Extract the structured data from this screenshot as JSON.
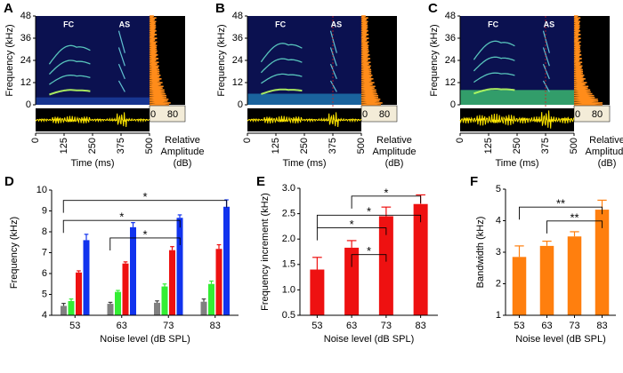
{
  "chart_data": [
    {
      "type": "spectrogram",
      "panel": "A",
      "ylabel": "Frequency (kHz)",
      "xlabel": "Time (ms)",
      "ylim": [
        0,
        48
      ],
      "yticks": [
        0,
        12,
        24,
        36,
        48
      ],
      "xlim": [
        0,
        500
      ],
      "xticks": [
        0,
        125,
        250,
        375,
        500
      ],
      "annotations": [
        "FC",
        "AS"
      ],
      "amplitude_lim": [
        0,
        80
      ],
      "amplitude_ticks": [
        0,
        80
      ],
      "amplitude_label": "Relative Amplitude (dB)"
    },
    {
      "type": "spectrogram",
      "panel": "B",
      "ylabel": "Frequency (kHz)",
      "xlabel": "Time (ms)",
      "ylim": [
        0,
        48
      ],
      "yticks": [
        0,
        12,
        24,
        36,
        48
      ],
      "xlim": [
        0,
        500
      ],
      "xticks": [
        0,
        125,
        250,
        375,
        500
      ],
      "annotations": [
        "FC",
        "AS"
      ],
      "amplitude_lim": [
        0,
        80
      ],
      "amplitude_ticks": [
        0,
        80
      ],
      "amplitude_label": "Relative Amplitude (dB)"
    },
    {
      "type": "spectrogram",
      "panel": "C",
      "ylabel": "Frequency (kHz)",
      "xlabel": "Time (ms)",
      "ylim": [
        0,
        48
      ],
      "yticks": [
        0,
        12,
        24,
        36,
        48
      ],
      "xlim": [
        0,
        500
      ],
      "xticks": [
        0,
        125,
        250,
        375,
        500
      ],
      "annotations": [
        "FC",
        "AS"
      ],
      "amplitude_lim": [
        0,
        80
      ],
      "amplitude_ticks": [
        0,
        80
      ],
      "amplitude_label": "Relative Amplitude (dB)"
    },
    {
      "type": "bar",
      "panel": "D",
      "ylabel": "Frequency (kHz)",
      "xlabel": "Noise level (dB SPL)",
      "categories": [
        "53",
        "63",
        "73",
        "83"
      ],
      "series": [
        {
          "color": "#808080",
          "values": [
            4.45,
            4.55,
            4.6,
            4.65
          ],
          "errors": [
            0.12,
            0.07,
            0.09,
            0.13
          ]
        },
        {
          "color": "#33ee33",
          "values": [
            4.68,
            5.12,
            5.38,
            5.5
          ],
          "errors": [
            0.1,
            0.07,
            0.12,
            0.14
          ]
        },
        {
          "color": "#ee1111",
          "values": [
            6.05,
            6.48,
            7.12,
            7.18
          ],
          "errors": [
            0.08,
            0.08,
            0.17,
            0.2
          ]
        },
        {
          "color": "#1133ee",
          "values": [
            7.6,
            8.22,
            8.67,
            9.2
          ],
          "errors": [
            0.28,
            0.22,
            0.14,
            0.33
          ]
        }
      ],
      "ylim": [
        4,
        10
      ],
      "yticks": [
        4,
        5,
        6,
        7,
        8,
        9,
        10
      ],
      "annotations": [
        "*",
        "*",
        "*"
      ]
    },
    {
      "type": "bar",
      "panel": "E",
      "ylabel": "Frequency increment (kHz)",
      "xlabel": "Noise level (dB SPL)",
      "categories": [
        "53",
        "63",
        "73",
        "83"
      ],
      "series": [
        {
          "color": "#ee1111",
          "values": [
            1.4,
            1.83,
            2.45,
            2.69
          ],
          "errors": [
            0.24,
            0.14,
            0.18,
            0.18
          ]
        }
      ],
      "ylim": [
        0.5,
        3
      ],
      "yticks": [
        0.5,
        {
          "value": 1,
          "label": "1.0"
        },
        1.5,
        {
          "value": 2,
          "label": "2.0"
        },
        2.5,
        {
          "value": 3,
          "label": "3.0"
        }
      ],
      "annotations": [
        "*",
        "*",
        "*",
        "*"
      ]
    },
    {
      "type": "bar",
      "panel": "F",
      "ylabel": "Bandwidth (kHz)",
      "xlabel": "Noise level (dB SPL)",
      "categories": [
        "53",
        "63",
        "73",
        "83"
      ],
      "series": [
        {
          "color": "#ff7f0e",
          "values": [
            2.85,
            3.2,
            3.5,
            4.35
          ],
          "errors": [
            0.35,
            0.15,
            0.15,
            0.3
          ]
        }
      ],
      "ylim": [
        1,
        5
      ],
      "yticks": [
        1,
        2,
        3,
        4,
        5
      ],
      "annotations": [
        "**",
        "**"
      ]
    }
  ]
}
